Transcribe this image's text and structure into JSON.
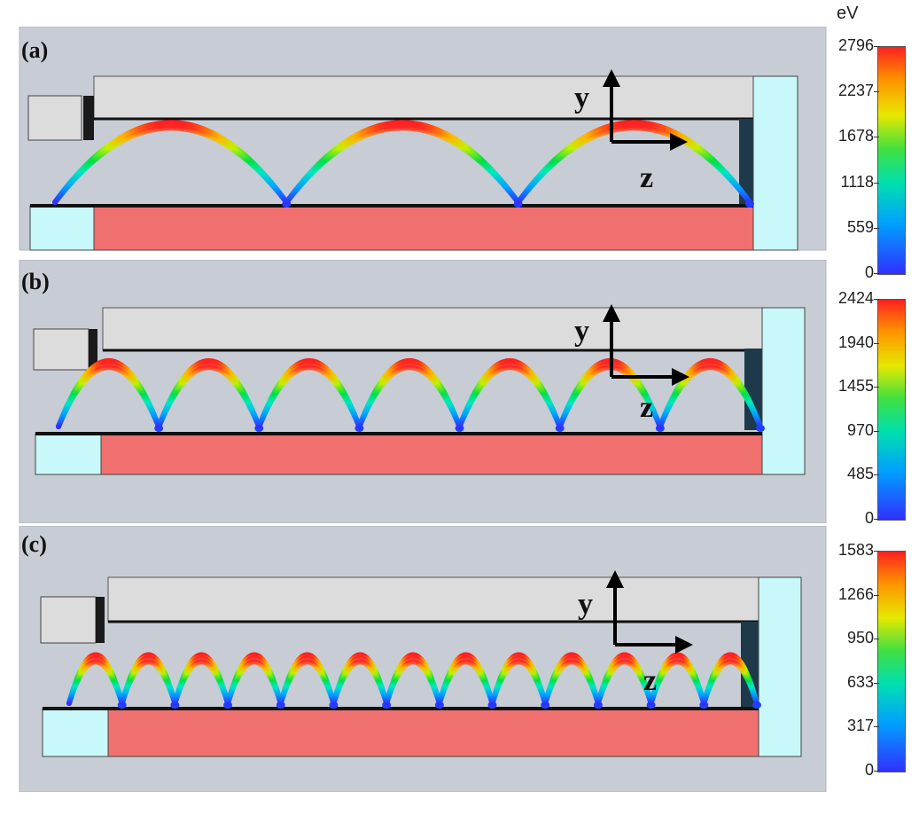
{
  "unit_label": "eV",
  "axes": {
    "y_label": "y",
    "z_label": "z"
  },
  "panels": [
    {
      "label": "(a)",
      "ticks": [
        "2796",
        "2237",
        "1678",
        "1118",
        "559",
        "0"
      ],
      "hops": 3
    },
    {
      "label": "(b)",
      "ticks": [
        "2424",
        "1940",
        "1455",
        "970",
        "485",
        "0"
      ],
      "hops": 7
    },
    {
      "label": "(c)",
      "ticks": [
        "1583",
        "1266",
        "950",
        "633",
        "317",
        "0"
      ],
      "hops": 13
    }
  ],
  "colors": {
    "background": "#c8ccd4",
    "electrode": "#dcdcdc",
    "cathode": "#f07070",
    "collector": "#c8f8fa",
    "dark_block": "#1e3a4a"
  }
}
